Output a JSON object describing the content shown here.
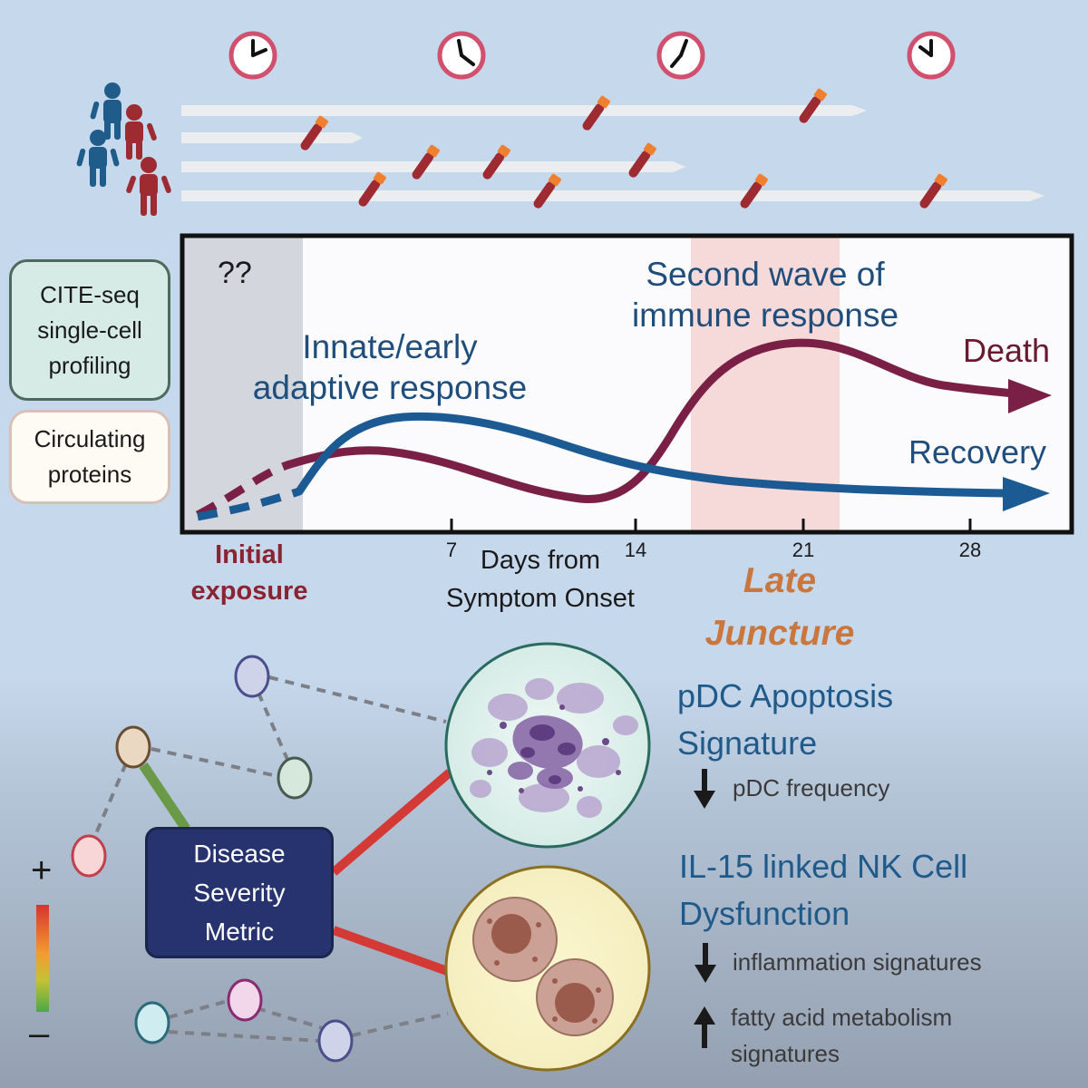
{
  "left_boxes": {
    "cite_seq": "CITE-seq single-cell profiling",
    "proteins": "Circulating proteins"
  },
  "plot": {
    "unknown_mark": "??",
    "innate_label": "Innate/early adaptive response",
    "second_wave_label": "Second wave of immune response",
    "death_label": "Death",
    "recovery_label": "Recovery",
    "ticks": [
      "7",
      "14",
      "21",
      "28"
    ],
    "axis_title": "Days from Symptom Onset",
    "initial_exposure": "Initial exposure",
    "late_juncture": "Late Juncture"
  },
  "network": {
    "metric_label": "Disease Severity Metric",
    "plus": "+",
    "minus": "–"
  },
  "signatures": {
    "pdc_title": "pDC Apoptosis Signature",
    "pdc_detail": "pDC frequency",
    "nk_title": "IL-15 linked NK Cell Dysfunction",
    "nk_detail_1": "inflammation signatures",
    "nk_detail_2": "fatty acid metabolism signatures"
  },
  "colors": {
    "death": "#7a2046",
    "recovery": "#1c5a94",
    "late_band": "#f6dada",
    "early_band": "#d3d7dd",
    "clock_ring": "#d0506e",
    "tube": "#9e2a32",
    "tube_cap": "#f08030"
  }
}
